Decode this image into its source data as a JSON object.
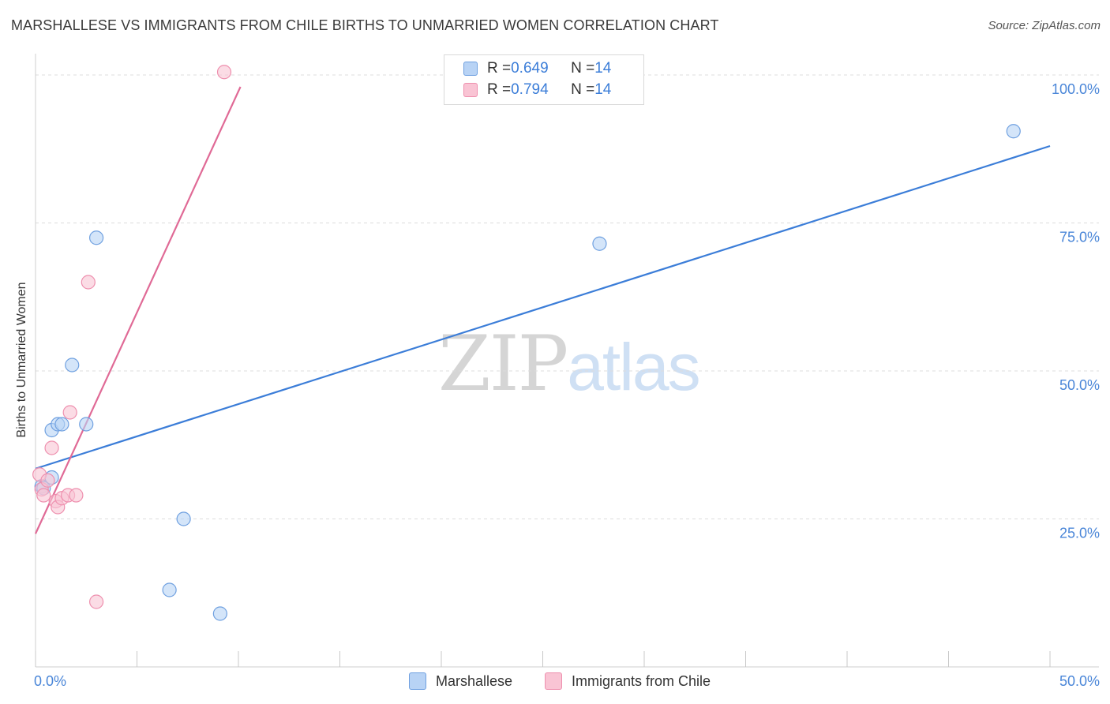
{
  "header": {
    "title": "MARSHALLESE VS IMMIGRANTS FROM CHILE BIRTHS TO UNMARRIED WOMEN CORRELATION CHART",
    "source": "Source: ZipAtlas.com"
  },
  "watermark": {
    "zip": "ZIP",
    "atlas": "atlas"
  },
  "legend": {
    "rows": [
      {
        "r_label": "R = ",
        "r_value": "0.649",
        "n_label": "N = ",
        "n_value": "14"
      },
      {
        "r_label": "R = ",
        "r_value": "0.794",
        "n_label": "N = ",
        "n_value": "14"
      }
    ]
  },
  "colors": {
    "marshallese_fill": "#b8d3f5",
    "marshallese_stroke": "#6fa0e0",
    "marshallese_line": "#3b7dd8",
    "chile_fill": "#f9c4d4",
    "chile_stroke": "#ee8fae",
    "chile_line": "#e06a96",
    "grid": "#dcdcdc",
    "axis_label": "#4a86d8"
  },
  "chart_data": {
    "type": "scatter",
    "title": "MARSHALLESE VS IMMIGRANTS FROM CHILE BIRTHS TO UNMARRIED WOMEN CORRELATION CHART",
    "xlabel": "",
    "ylabel": "Births to Unmarried Women",
    "xlim": [
      0,
      50
    ],
    "ylim": [
      0,
      102
    ],
    "x_tick_labels": [
      {
        "value": 0,
        "label": "0.0%"
      },
      {
        "value": 50,
        "label": "50.0%"
      }
    ],
    "y_tick_labels": [
      {
        "value": 25,
        "label": "25.0%"
      },
      {
        "value": 50,
        "label": "50.0%"
      },
      {
        "value": 75,
        "label": "75.0%"
      },
      {
        "value": 100,
        "label": "100.0%"
      }
    ],
    "series": [
      {
        "name": "Marshallese",
        "r": 0.649,
        "n": 14,
        "points": [
          {
            "x": 0.3,
            "y": 30.5
          },
          {
            "x": 0.4,
            "y": 30.2
          },
          {
            "x": 0.8,
            "y": 32.0
          },
          {
            "x": 0.8,
            "y": 40.0
          },
          {
            "x": 1.1,
            "y": 41.0
          },
          {
            "x": 1.3,
            "y": 41.0
          },
          {
            "x": 1.8,
            "y": 51.0
          },
          {
            "x": 2.5,
            "y": 41.0
          },
          {
            "x": 3.0,
            "y": 72.5
          },
          {
            "x": 7.3,
            "y": 25.0
          },
          {
            "x": 6.6,
            "y": 13.0
          },
          {
            "x": 9.1,
            "y": 9.0
          },
          {
            "x": 27.8,
            "y": 71.5
          },
          {
            "x": 48.2,
            "y": 90.5
          }
        ],
        "trend": {
          "x": [
            0,
            50
          ],
          "y": [
            33.5,
            88.0
          ]
        }
      },
      {
        "name": "Immigrants from Chile",
        "r": 0.794,
        "n": 14,
        "points": [
          {
            "x": 0.2,
            "y": 32.5
          },
          {
            "x": 0.3,
            "y": 30.0
          },
          {
            "x": 0.4,
            "y": 29.0
          },
          {
            "x": 0.6,
            "y": 31.5
          },
          {
            "x": 0.8,
            "y": 37.0
          },
          {
            "x": 1.0,
            "y": 28.0
          },
          {
            "x": 1.1,
            "y": 27.0
          },
          {
            "x": 1.3,
            "y": 28.5
          },
          {
            "x": 1.6,
            "y": 29.0
          },
          {
            "x": 1.7,
            "y": 43.0
          },
          {
            "x": 2.0,
            "y": 29.0
          },
          {
            "x": 2.6,
            "y": 65.0
          },
          {
            "x": 3.0,
            "y": 11.0
          },
          {
            "x": 9.3,
            "y": 100.5
          }
        ],
        "trend": {
          "x": [
            0,
            10.1
          ],
          "y": [
            22.5,
            98.0
          ]
        }
      }
    ],
    "grid": true,
    "legend_position": "top-center"
  },
  "bottom_legend": [
    {
      "label": "Marshallese"
    },
    {
      "label": "Immigrants from Chile"
    }
  ]
}
